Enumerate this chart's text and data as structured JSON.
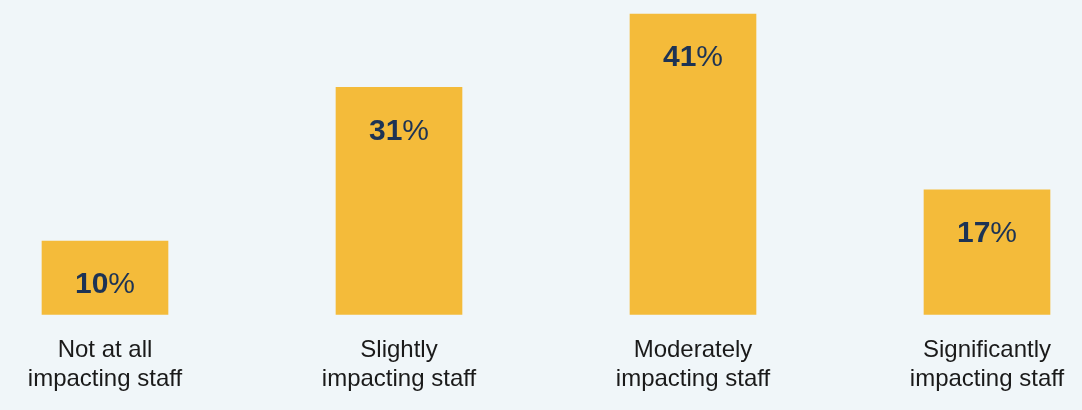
{
  "chart_data": {
    "type": "bar",
    "categories": [
      "Not at all impacting staff",
      "Slightly impacting staff",
      "Moderately impacting staff",
      "Significantly impacting staff"
    ],
    "values": [
      10,
      31,
      41,
      17
    ],
    "color": "#f4bb3a",
    "value_labels": [
      "10%",
      "31%",
      "41%",
      "17%"
    ],
    "ylim": [
      0,
      41
    ],
    "tick_labels": "x",
    "grid": false,
    "legend": false
  }
}
